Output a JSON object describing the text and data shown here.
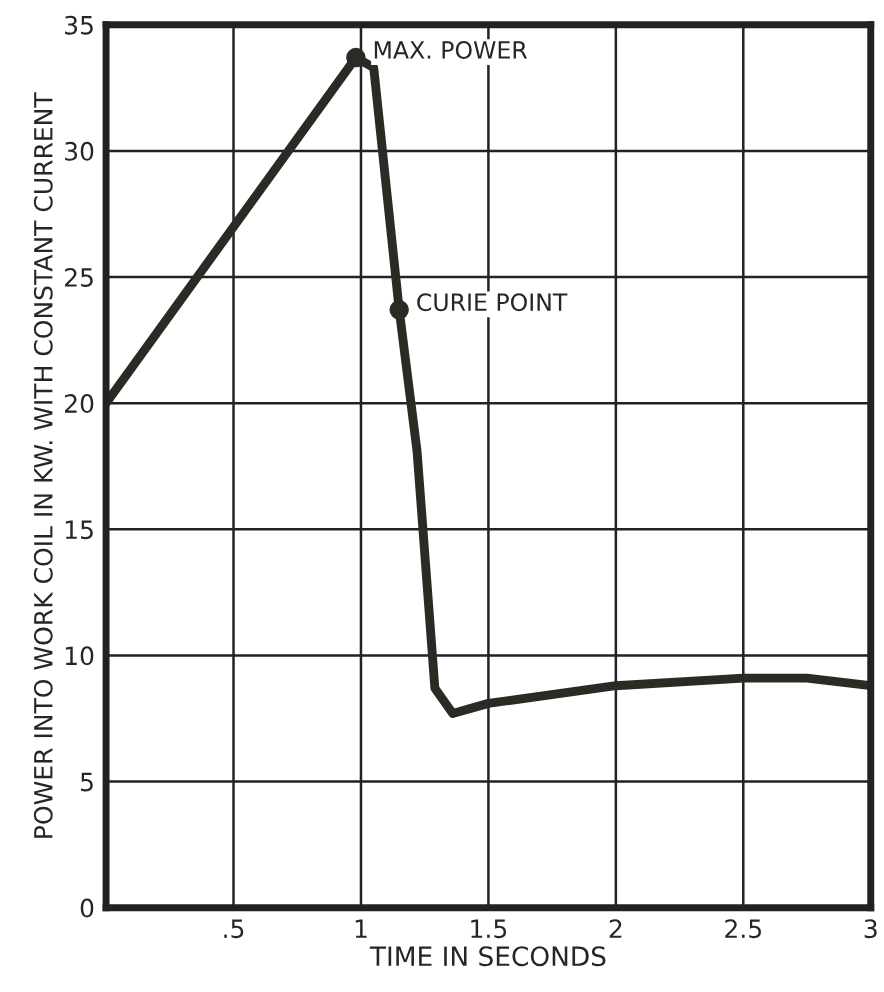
{
  "chart_data": {
    "type": "line",
    "xlabel": "TIME IN SECONDS",
    "ylabel": "POWER INTO WORK COIL IN KW. WITH CONSTANT CURRENT",
    "series": [
      {
        "color": "#2b2b26",
        "x": [
          0,
          0.98,
          1.05,
          1.15,
          1.22,
          1.29,
          1.36,
          1.5,
          2,
          2.5,
          2.75,
          3
        ],
        "values": [
          20,
          33.7,
          33.3,
          23.7,
          18.1,
          8.7,
          7.7,
          8.1,
          8.8,
          9.1,
          9.1,
          8.8
        ]
      }
    ],
    "xlim": [
      0,
      3
    ],
    "ylim": [
      0,
      35
    ],
    "xticks": [
      {
        "value": 0.5,
        "label": ".5"
      },
      1,
      1.5,
      2,
      2.5,
      3
    ],
    "yticks": [
      0,
      5,
      10,
      15,
      20,
      25,
      30,
      35
    ],
    "grid": true,
    "marker": "none",
    "line_style": "solid",
    "annotations": [
      {
        "text": "MAX. POWER",
        "x": 0.98,
        "y": 33.7
      },
      {
        "text": "CURIE POINT",
        "x": 1.15,
        "y": 23.7
      }
    ]
  }
}
